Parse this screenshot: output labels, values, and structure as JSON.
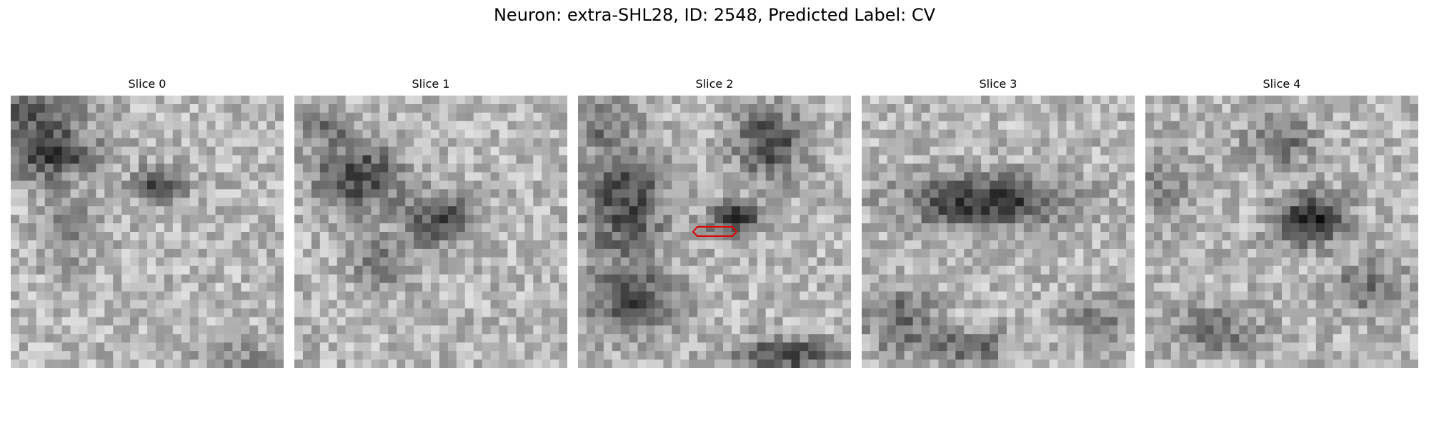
{
  "figure": {
    "title": "Neuron: extra-SHL28, ID: 2548, Predicted Label: CV"
  },
  "panels": [
    {
      "title": "Slice 0",
      "has_marker": false
    },
    {
      "title": "Slice 1",
      "has_marker": false
    },
    {
      "title": "Slice 2",
      "has_marker": true
    },
    {
      "title": "Slice 3",
      "has_marker": false
    },
    {
      "title": "Slice 4",
      "has_marker": false
    }
  ],
  "image": {
    "colormap": "grayscale",
    "grid": "32x32 pixels",
    "marker_color": "#e00000"
  }
}
